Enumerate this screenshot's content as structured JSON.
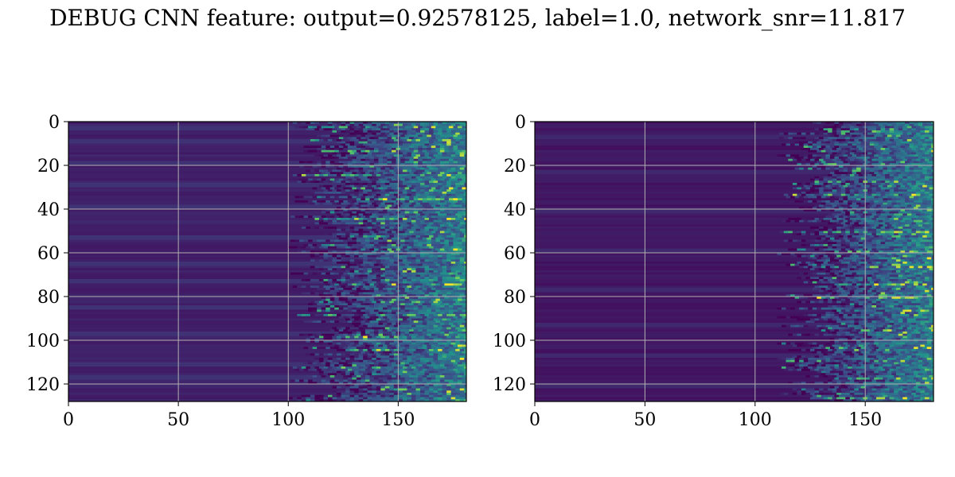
{
  "figure": {
    "suptitle": "DEBUG CNN feature: output=0.92578125, label=1.0, network_snr=11.817"
  },
  "chart_data": [
    {
      "type": "heatmap",
      "title": "",
      "xlabel": "",
      "ylabel": "",
      "colormap": "viridis",
      "xlim": [
        0,
        181
      ],
      "ylim": [
        128,
        0
      ],
      "xticks": [
        0,
        50,
        100,
        150
      ],
      "yticks": [
        0,
        20,
        40,
        60,
        80,
        100,
        120
      ],
      "grid": true,
      "onset_column_approx": 115,
      "hot_rows_approx": [
        2,
        8,
        13,
        24,
        30,
        35,
        44,
        52,
        58,
        68,
        74,
        82,
        88,
        98,
        104,
        112,
        122
      ],
      "bright_bands_rows_approx": [
        2,
        8,
        18,
        28,
        38,
        52,
        64,
        72,
        84,
        96,
        110,
        116
      ]
    },
    {
      "type": "heatmap",
      "title": "",
      "xlabel": "",
      "ylabel": "",
      "colormap": "viridis",
      "xlim": [
        0,
        181
      ],
      "ylim": [
        128,
        0
      ],
      "xticks": [
        0,
        50,
        100,
        150
      ],
      "yticks": [
        0,
        20,
        40,
        60,
        80,
        100,
        120
      ],
      "grid": true,
      "onset_column_approx": 125,
      "hot_rows_approx": [
        4,
        11,
        19,
        27,
        33,
        42,
        50,
        59,
        66,
        74,
        80,
        86,
        95,
        103,
        109,
        117,
        126
      ],
      "bright_bands_rows_approx": [
        6,
        22,
        40,
        58,
        76,
        92,
        106,
        120
      ]
    }
  ]
}
